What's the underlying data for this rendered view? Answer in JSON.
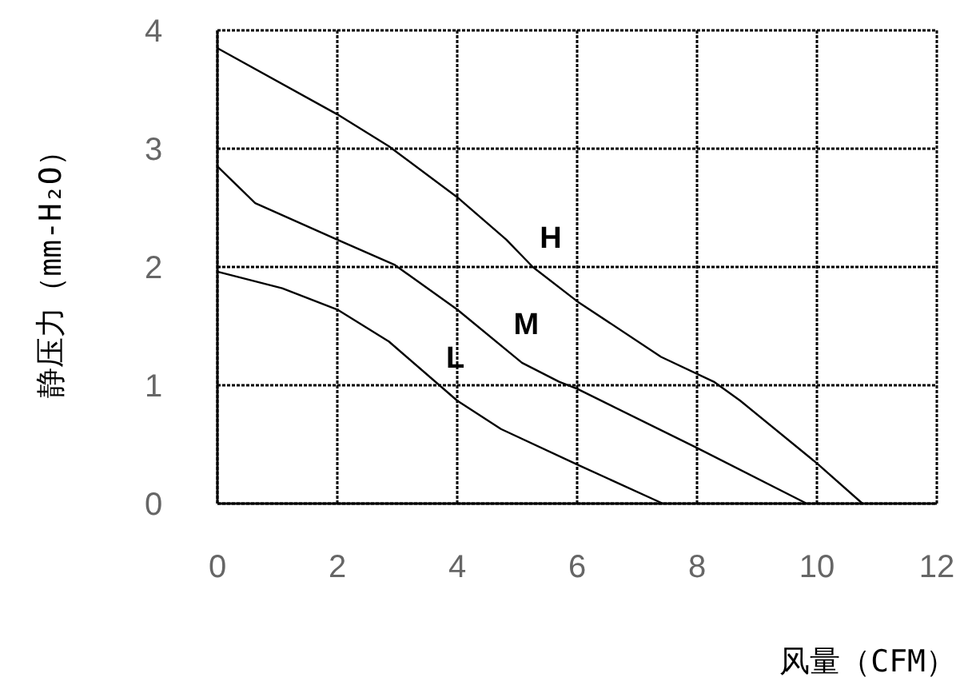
{
  "chart_data": {
    "type": "line",
    "xlabel": "风量（CFM）",
    "ylabel": "静压力（mm-H₂O）",
    "xlim": [
      0,
      12
    ],
    "ylim": [
      0,
      4
    ],
    "xticks": [
      0,
      2,
      4,
      6,
      8,
      10,
      12
    ],
    "yticks": [
      0,
      1,
      2,
      3,
      4
    ],
    "grid": true,
    "line_style": "solid",
    "marker": "none",
    "series": [
      {
        "name": "H",
        "color": "#000000",
        "x": [
          0,
          2,
          2.86,
          4,
          4.82,
          5.26,
          6,
          7.4,
          8.28,
          8.72,
          10,
          10.76
        ],
        "values": [
          3.85,
          3.29,
          3.02,
          2.59,
          2.23,
          2.0,
          1.71,
          1.24,
          1.03,
          0.87,
          0.34,
          0
        ]
      },
      {
        "name": "M",
        "color": "#000000",
        "x": [
          0,
          0.63,
          2,
          2.95,
          4,
          5.08,
          5.7,
          6,
          8,
          9.83
        ],
        "values": [
          2.85,
          2.54,
          2.23,
          2.02,
          1.64,
          1.19,
          1.03,
          0.97,
          0.47,
          0
        ]
      },
      {
        "name": "L",
        "color": "#000000",
        "x": [
          0,
          1.08,
          2,
          2.86,
          4,
          4.73,
          6,
          7.43
        ],
        "values": [
          1.96,
          1.82,
          1.64,
          1.37,
          0.87,
          0.63,
          0.33,
          0
        ]
      }
    ]
  }
}
